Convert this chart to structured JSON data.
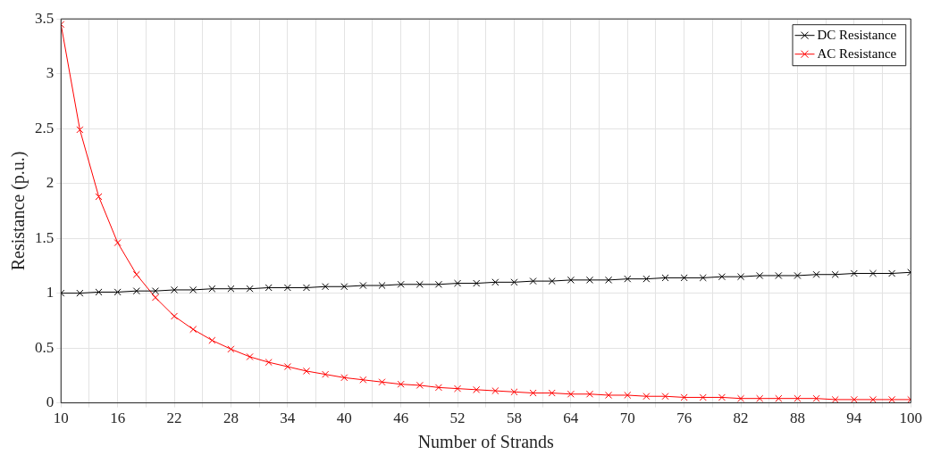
{
  "chart_data": {
    "type": "line",
    "xlabel": "Number of Strands",
    "ylabel": "Resistance (p.u.)",
    "x": [
      10,
      12,
      14,
      16,
      18,
      20,
      22,
      24,
      26,
      28,
      30,
      32,
      34,
      36,
      38,
      40,
      42,
      44,
      46,
      48,
      50,
      52,
      54,
      56,
      58,
      60,
      62,
      64,
      66,
      68,
      70,
      72,
      74,
      76,
      78,
      80,
      82,
      84,
      86,
      88,
      90,
      92,
      94,
      96,
      98,
      100
    ],
    "series": [
      {
        "name": "DC Resistance",
        "color": "#000000",
        "values": [
          1.0,
          1.0,
          1.01,
          1.01,
          1.02,
          1.02,
          1.03,
          1.03,
          1.04,
          1.04,
          1.04,
          1.05,
          1.05,
          1.05,
          1.06,
          1.06,
          1.07,
          1.07,
          1.08,
          1.08,
          1.08,
          1.09,
          1.09,
          1.1,
          1.1,
          1.11,
          1.11,
          1.12,
          1.12,
          1.12,
          1.13,
          1.13,
          1.14,
          1.14,
          1.14,
          1.15,
          1.15,
          1.16,
          1.16,
          1.16,
          1.17,
          1.17,
          1.18,
          1.18,
          1.18,
          1.19
        ]
      },
      {
        "name": "AC Resistance",
        "color": "#ff0000",
        "values": [
          3.45,
          2.49,
          1.88,
          1.46,
          1.17,
          0.96,
          0.79,
          0.67,
          0.57,
          0.49,
          0.42,
          0.37,
          0.33,
          0.29,
          0.26,
          0.23,
          0.21,
          0.19,
          0.17,
          0.16,
          0.14,
          0.13,
          0.12,
          0.11,
          0.1,
          0.09,
          0.09,
          0.08,
          0.08,
          0.07,
          0.07,
          0.06,
          0.06,
          0.05,
          0.05,
          0.05,
          0.04,
          0.04,
          0.04,
          0.04,
          0.04,
          0.03,
          0.03,
          0.03,
          0.03,
          0.03
        ]
      }
    ],
    "xlim": [
      10,
      100
    ],
    "xticks": [
      10,
      {
        "value": 13,
        "label": null
      },
      16,
      {
        "value": 19,
        "label": null
      },
      22,
      {
        "value": 25,
        "label": null
      },
      28,
      {
        "value": 31,
        "label": null
      },
      34,
      {
        "value": 37,
        "label": null
      },
      40,
      {
        "value": 43,
        "label": null
      },
      46,
      {
        "value": 49,
        "label": null
      },
      52,
      {
        "value": 55,
        "label": null
      },
      58,
      {
        "value": 61,
        "label": null
      },
      64,
      {
        "value": 67,
        "label": null
      },
      70,
      {
        "value": 73,
        "label": null
      },
      76,
      {
        "value": 79,
        "label": null
      },
      82,
      {
        "value": 85,
        "label": null
      },
      88,
      {
        "value": 91,
        "label": null
      },
      94,
      {
        "value": 97,
        "label": null
      },
      100
    ],
    "ylim": [
      0,
      3.5
    ],
    "yticks": [
      0,
      0.5,
      1,
      1.5,
      2,
      2.5,
      3,
      3.5
    ],
    "grid": true,
    "legend": "top right",
    "marker": "cross",
    "line_style": "solid"
  }
}
